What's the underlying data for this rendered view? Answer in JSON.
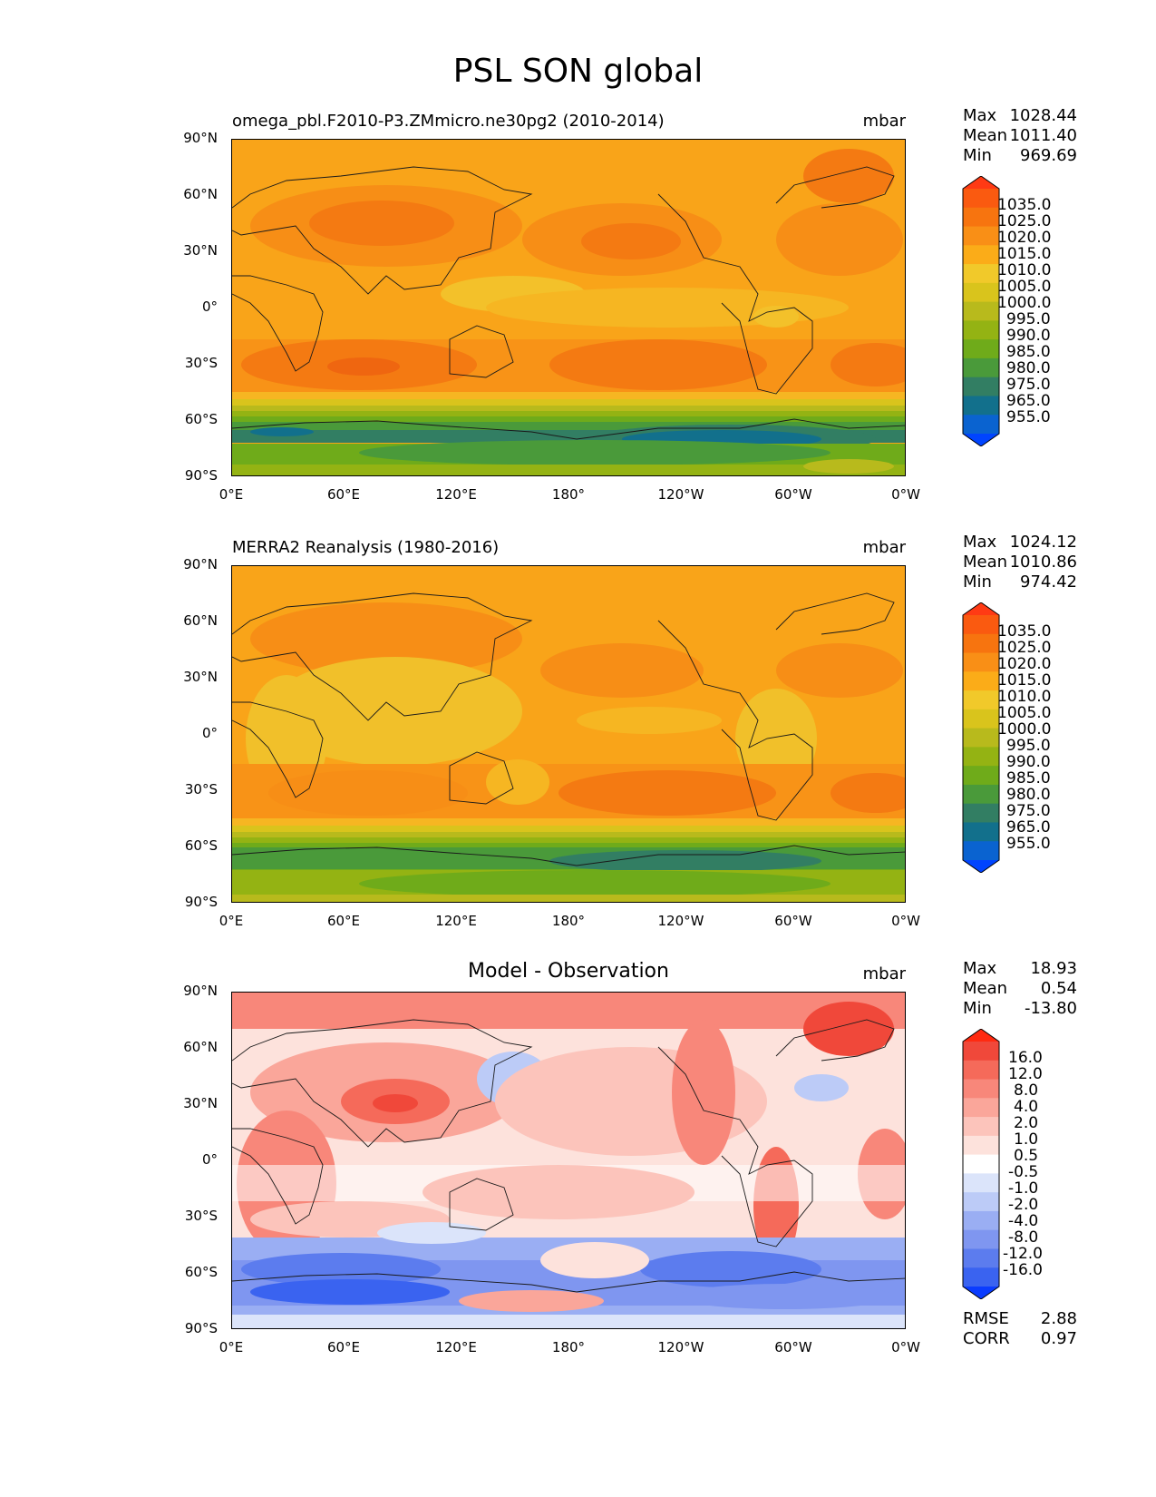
{
  "title": "PSL SON global",
  "axes": {
    "y_ticks": [
      "90°N",
      "60°N",
      "30°N",
      "0°",
      "30°S",
      "60°S",
      "90°S"
    ],
    "x_ticks": [
      "0°E",
      "60°E",
      "120°E",
      "180°",
      "120°W",
      "60°W",
      "0°W"
    ]
  },
  "panels": [
    {
      "subtitle": "omega_pbl.F2010-P3.ZMmicro.ne30pg2 (2010-2014)",
      "units": "mbar",
      "stats": {
        "max_label": "Max",
        "max": "1028.44",
        "mean_label": "Mean",
        "mean": "1011.40",
        "min_label": "Min",
        "min": "969.69"
      },
      "colorbar": {
        "labels": [
          "1035.0",
          "1025.0",
          "1020.0",
          "1015.0",
          "1010.0",
          "1005.0",
          "1000.0",
          "995.0",
          "990.0",
          "985.0",
          "980.0",
          "975.0",
          "965.0",
          "955.0"
        ],
        "colors": [
          "#ff3a14",
          "#fa5a10",
          "#f7740f",
          "#f98f16",
          "#fbac18",
          "#f1c92a",
          "#d9c41c",
          "#b8ba1c",
          "#94b313",
          "#6fab1a",
          "#4a9a3a",
          "#327e63",
          "#12708c",
          "#0a63d0",
          "#0044ff"
        ]
      }
    },
    {
      "subtitle": "MERRA2 Reanalysis (1980-2016)",
      "units": "mbar",
      "stats": {
        "max_label": "Max",
        "max": "1024.12",
        "mean_label": "Mean",
        "mean": "1010.86",
        "min_label": "Min",
        "min": "974.42"
      },
      "colorbar": {
        "labels": [
          "1035.0",
          "1025.0",
          "1020.0",
          "1015.0",
          "1010.0",
          "1005.0",
          "1000.0",
          "995.0",
          "990.0",
          "985.0",
          "980.0",
          "975.0",
          "965.0",
          "955.0"
        ],
        "colors": [
          "#ff3a14",
          "#fa5a10",
          "#f7740f",
          "#f98f16",
          "#fbac18",
          "#f1c92a",
          "#d9c41c",
          "#b8ba1c",
          "#94b313",
          "#6fab1a",
          "#4a9a3a",
          "#327e63",
          "#12708c",
          "#0a63d0",
          "#0044ff"
        ]
      }
    },
    {
      "title": "Model - Observation",
      "units": "mbar",
      "stats": {
        "max_label": "Max",
        "max": "18.93",
        "mean_label": "Mean",
        "mean": "0.54",
        "min_label": "Min",
        "min": "-13.80"
      },
      "metrics": {
        "rmse_label": "RMSE",
        "rmse": "2.88",
        "corr_label": "CORR",
        "corr": "0.97"
      },
      "colorbar": {
        "labels": [
          "16.0",
          "12.0",
          "8.0",
          "4.0",
          "2.0",
          "1.0",
          "0.5",
          "-0.5",
          "-1.0",
          "-2.0",
          "-4.0",
          "-8.0",
          "-12.0",
          "-16.0"
        ],
        "colors": [
          "#ff2a10",
          "#f0483a",
          "#f56a5a",
          "#f8877a",
          "#faa69a",
          "#fcc4bb",
          "#fde2dc",
          "#ffffff",
          "#dbe4fa",
          "#bccbf7",
          "#9aaef3",
          "#7f96f0",
          "#5c7cee",
          "#3a63f0",
          "#0a3cff"
        ]
      }
    }
  ]
}
